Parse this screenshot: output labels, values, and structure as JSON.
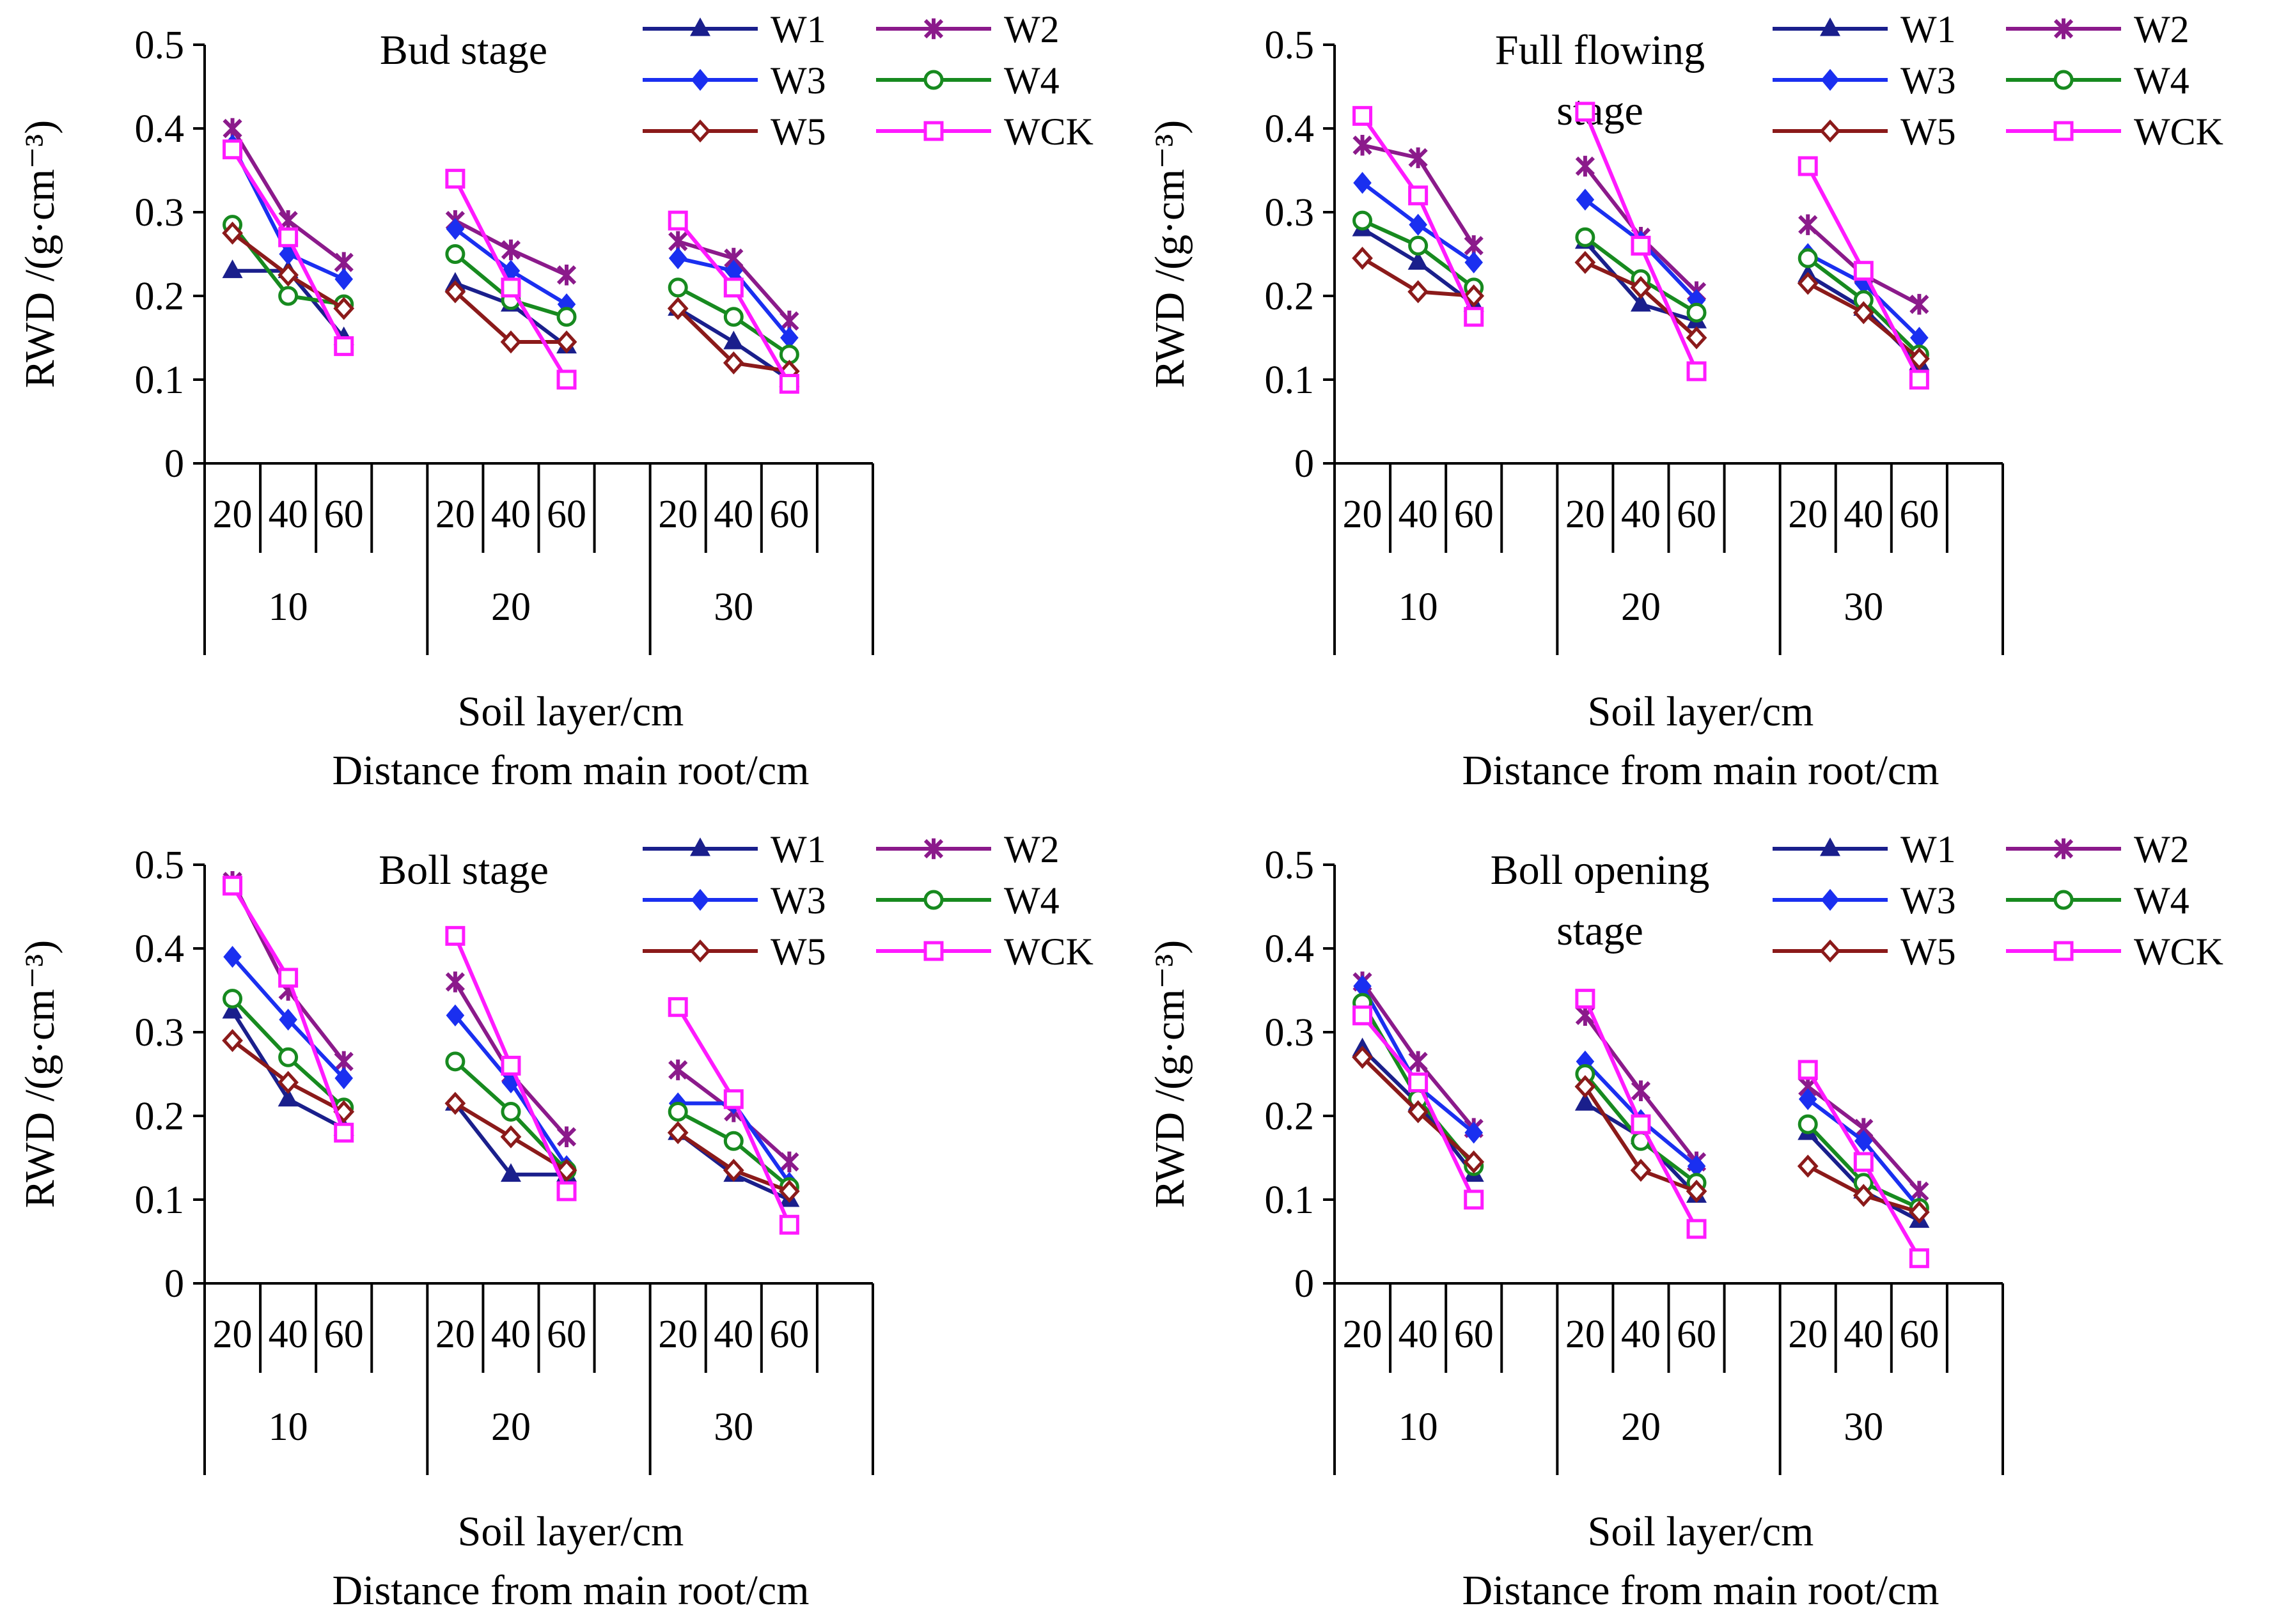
{
  "chart_data": [
    {
      "type": "line",
      "title": "Bud stage",
      "ylabel": "RWD /(g·cm⁻³)",
      "xlabel_line1": "Soil layer/cm",
      "xlabel_line2": "Distance from main root/cm",
      "ylim": [
        0,
        0.5
      ],
      "yticks": [
        "0",
        "0.1",
        "0.2",
        "0.3",
        "0.4",
        "0.5"
      ],
      "soil_layers": [
        "20",
        "40",
        "60"
      ],
      "distances": [
        "10",
        "20",
        "30"
      ],
      "series": [
        {
          "name": "W1",
          "values": [
            [
              0.23,
              0.23,
              0.15
            ],
            [
              0.215,
              0.19,
              0.14
            ],
            [
              0.185,
              0.145,
              0.1
            ]
          ]
        },
        {
          "name": "W2",
          "values": [
            [
              0.4,
              0.29,
              0.24
            ],
            [
              0.29,
              0.255,
              0.225
            ],
            [
              0.265,
              0.245,
              0.17
            ]
          ]
        },
        {
          "name": "W3",
          "values": [
            [
              0.38,
              0.25,
              0.22
            ],
            [
              0.28,
              0.23,
              0.19
            ],
            [
              0.245,
              0.23,
              0.15
            ]
          ]
        },
        {
          "name": "W4",
          "values": [
            [
              0.285,
              0.2,
              0.19
            ],
            [
              0.25,
              0.195,
              0.175
            ],
            [
              0.21,
              0.175,
              0.13
            ]
          ]
        },
        {
          "name": "W5",
          "values": [
            [
              0.275,
              0.225,
              0.185
            ],
            [
              0.205,
              0.145,
              0.145
            ],
            [
              0.185,
              0.12,
              0.11
            ]
          ]
        },
        {
          "name": "WCK",
          "values": [
            [
              0.375,
              0.27,
              0.14
            ],
            [
              0.34,
              0.21,
              0.1
            ],
            [
              0.29,
              0.21,
              0.095
            ]
          ]
        }
      ]
    },
    {
      "type": "line",
      "title_line1": "Full flowing",
      "title_line2": "stage",
      "ylabel": "RWD /(g·cm⁻³)",
      "xlabel_line1": "Soil layer/cm",
      "xlabel_line2": "Distance from main root/cm",
      "ylim": [
        0,
        0.5
      ],
      "yticks": [
        "0",
        "0.1",
        "0.2",
        "0.3",
        "0.4",
        "0.5"
      ],
      "soil_layers": [
        "20",
        "40",
        "60"
      ],
      "distances": [
        "10",
        "20",
        "30"
      ],
      "series": [
        {
          "name": "W1",
          "values": [
            [
              0.28,
              0.24,
              0.19
            ],
            [
              0.265,
              0.19,
              0.17
            ],
            [
              0.225,
              0.185,
              0.12
            ]
          ]
        },
        {
          "name": "W2",
          "values": [
            [
              0.38,
              0.365,
              0.26
            ],
            [
              0.355,
              0.27,
              0.205
            ],
            [
              0.285,
              0.225,
              0.19
            ]
          ]
        },
        {
          "name": "W3",
          "values": [
            [
              0.335,
              0.285,
              0.24
            ],
            [
              0.315,
              0.265,
              0.195
            ],
            [
              0.25,
              0.215,
              0.15
            ]
          ]
        },
        {
          "name": "W4",
          "values": [
            [
              0.29,
              0.26,
              0.21
            ],
            [
              0.27,
              0.22,
              0.18
            ],
            [
              0.245,
              0.195,
              0.13
            ]
          ]
        },
        {
          "name": "W5",
          "values": [
            [
              0.245,
              0.205,
              0.2
            ],
            [
              0.24,
              0.21,
              0.15
            ],
            [
              0.215,
              0.18,
              0.125
            ]
          ]
        },
        {
          "name": "WCK",
          "values": [
            [
              0.415,
              0.32,
              0.175
            ],
            [
              0.42,
              0.26,
              0.11
            ],
            [
              0.355,
              0.23,
              0.1
            ]
          ]
        }
      ]
    },
    {
      "type": "line",
      "title": "Boll stage",
      "ylabel": "RWD /(g·cm⁻³)",
      "xlabel_line1": "Soil layer/cm",
      "xlabel_line2": "Distance from main root/cm",
      "ylim": [
        0,
        0.5
      ],
      "yticks": [
        "0",
        "0.1",
        "0.2",
        "0.3",
        "0.4",
        "0.5"
      ],
      "soil_layers": [
        "20",
        "40",
        "60"
      ],
      "distances": [
        "10",
        "20",
        "30"
      ],
      "series": [
        {
          "name": "W1",
          "values": [
            [
              0.325,
              0.22,
              0.185
            ],
            [
              0.215,
              0.13,
              0.13
            ],
            [
              0.18,
              0.13,
              0.1
            ]
          ]
        },
        {
          "name": "W2",
          "values": [
            [
              0.48,
              0.35,
              0.265
            ],
            [
              0.36,
              0.25,
              0.175
            ],
            [
              0.255,
              0.205,
              0.145
            ]
          ]
        },
        {
          "name": "W3",
          "values": [
            [
              0.39,
              0.315,
              0.245
            ],
            [
              0.32,
              0.24,
              0.14
            ],
            [
              0.215,
              0.215,
              0.12
            ]
          ]
        },
        {
          "name": "W4",
          "values": [
            [
              0.34,
              0.27,
              0.21
            ],
            [
              0.265,
              0.205,
              0.135
            ],
            [
              0.205,
              0.17,
              0.115
            ]
          ]
        },
        {
          "name": "W5",
          "values": [
            [
              0.29,
              0.24,
              0.205
            ],
            [
              0.215,
              0.175,
              0.135
            ],
            [
              0.18,
              0.135,
              0.11
            ]
          ]
        },
        {
          "name": "WCK",
          "values": [
            [
              0.475,
              0.365,
              0.18
            ],
            [
              0.415,
              0.26,
              0.11
            ],
            [
              0.33,
              0.22,
              0.07
            ]
          ]
        }
      ]
    },
    {
      "type": "line",
      "title_line1": "Boll opening",
      "title_line2": "stage",
      "ylabel": "RWD /(g·cm⁻³)",
      "xlabel_line1": "Soil layer/cm",
      "xlabel_line2": "Distance from main root/cm",
      "ylim": [
        0,
        0.5
      ],
      "yticks": [
        "0",
        "0.1",
        "0.2",
        "0.3",
        "0.4",
        "0.5"
      ],
      "soil_layers": [
        "20",
        "40",
        "60"
      ],
      "distances": [
        "10",
        "20",
        "30"
      ],
      "series": [
        {
          "name": "W1",
          "values": [
            [
              0.28,
              0.215,
              0.13
            ],
            [
              0.215,
              0.175,
              0.105
            ],
            [
              0.18,
              0.11,
              0.075
            ]
          ]
        },
        {
          "name": "W2",
          "values": [
            [
              0.36,
              0.265,
              0.185
            ],
            [
              0.32,
              0.23,
              0.145
            ],
            [
              0.235,
              0.185,
              0.11
            ]
          ]
        },
        {
          "name": "W3",
          "values": [
            [
              0.355,
              0.235,
              0.18
            ],
            [
              0.265,
              0.195,
              0.14
            ],
            [
              0.22,
              0.17,
              0.09
            ]
          ]
        },
        {
          "name": "W4",
          "values": [
            [
              0.335,
              0.22,
              0.14
            ],
            [
              0.25,
              0.17,
              0.12
            ],
            [
              0.19,
              0.12,
              0.09
            ]
          ]
        },
        {
          "name": "W5",
          "values": [
            [
              0.27,
              0.205,
              0.145
            ],
            [
              0.235,
              0.135,
              0.11
            ],
            [
              0.14,
              0.105,
              0.085
            ]
          ]
        },
        {
          "name": "WCK",
          "values": [
            [
              0.32,
              0.24,
              0.1
            ],
            [
              0.34,
              0.19,
              0.065
            ],
            [
              0.255,
              0.145,
              0.03
            ]
          ]
        }
      ]
    }
  ],
  "legend_style": {
    "W1": {
      "color": "#1a1f8c",
      "marker": "triangle"
    },
    "W2": {
      "color": "#8b1a8b",
      "marker": "star"
    },
    "W3": {
      "color": "#1a2ff0",
      "marker": "diamond"
    },
    "W4": {
      "color": "#178a1f",
      "marker": "circle"
    },
    "W5": {
      "color": "#8b1a1a",
      "marker": "diamond-open"
    },
    "WCK": {
      "color": "#ff1aff",
      "marker": "square-open"
    }
  }
}
